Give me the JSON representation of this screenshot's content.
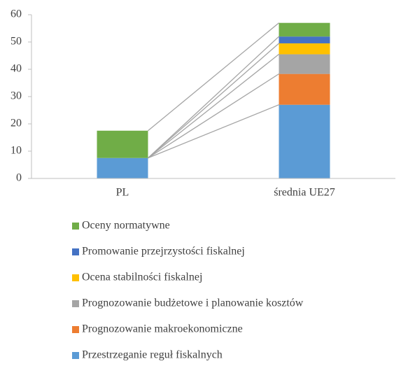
{
  "chart_data": {
    "type": "stacked_bar",
    "categories": [
      "PL",
      "średnia UE27"
    ],
    "series": [
      {
        "name": "Przestrzeganie reguł fiskalnych",
        "color": "#5b9bd5",
        "values": [
          7.5,
          27
        ]
      },
      {
        "name": "Prognozowanie makroekonomiczne",
        "color": "#ed7d31",
        "values": [
          0,
          11.3
        ]
      },
      {
        "name": "Prognozowanie budżetowe i planowanie kosztów",
        "color": "#a5a5a5",
        "values": [
          0,
          7.2
        ]
      },
      {
        "name": "Ocena stabilności fiskalnej",
        "color": "#ffc000",
        "values": [
          0,
          4
        ]
      },
      {
        "name": "Promowanie przejrzystości fiskalnej",
        "color": "#4472c4",
        "values": [
          0,
          2.5
        ]
      },
      {
        "name": "Oceny normatywne",
        "color": "#70ad47",
        "values": [
          10,
          5
        ]
      }
    ],
    "ylim": [
      0,
      60
    ],
    "yticks": [
      0,
      10,
      20,
      30,
      40,
      50,
      60
    ],
    "series_lines": true,
    "legend": "bottom",
    "legend_order": "reverse"
  }
}
